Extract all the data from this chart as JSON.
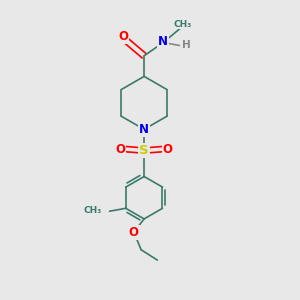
{
  "background_color": "#e8e8e8",
  "bond_color": "#3a7a6a",
  "atom_colors": {
    "O": "#ff0000",
    "N": "#0000ee",
    "S": "#cccc00",
    "C": "#3a7a6a",
    "H": "#888888"
  },
  "bond_width": 1.2,
  "font_size": 7.5,
  "figsize": [
    3.0,
    3.0
  ],
  "dpi": 100
}
